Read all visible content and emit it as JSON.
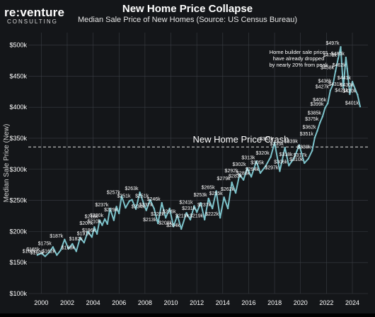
{
  "brand": {
    "name": "re:venture",
    "tagline": "CONSULTING"
  },
  "chart_data": {
    "type": "line",
    "title": "New Home Price Collapse",
    "subtitle": "Median Sale Price of New Homes (Source: US Census Bureau)",
    "xlabel": "",
    "ylabel": "Median Sale Price (New)",
    "xlim": [
      1999.0,
      2025.2
    ],
    "ylim": [
      100,
      520
    ],
    "x_ticks": [
      2000,
      2002,
      2004,
      2006,
      2008,
      2010,
      2012,
      2014,
      2016,
      2018,
      2020,
      2022,
      2024
    ],
    "y_ticks": [
      {
        "value": 100,
        "label": "$100k"
      },
      {
        "value": 150,
        "label": "$150k"
      },
      {
        "value": 200,
        "label": "$200k"
      },
      {
        "value": 250,
        "label": "$250k"
      },
      {
        "value": 300,
        "label": "$300k"
      },
      {
        "value": 350,
        "label": "$350k"
      },
      {
        "value": 400,
        "label": "$400k"
      },
      {
        "value": 450,
        "label": "$450k"
      },
      {
        "value": 500,
        "label": "$500k"
      }
    ],
    "grid": true,
    "colors": {
      "line": "#7dc4cc",
      "background": "#141619",
      "grid": "#3a3e44",
      "text": "#ffffff"
    },
    "series": [
      {
        "name": "Median Sale Price",
        "points": [
          [
            1999.7,
            162
          ],
          [
            2000.0,
            165
          ],
          [
            2000.3,
            160
          ],
          [
            2000.6,
            166
          ],
          [
            2000.9,
            175
          ],
          [
            2001.2,
            162
          ],
          [
            2001.5,
            170
          ],
          [
            2001.8,
            187
          ],
          [
            2002.1,
            172
          ],
          [
            2002.4,
            180
          ],
          [
            2002.7,
            168
          ],
          [
            2003.0,
            190
          ],
          [
            2003.3,
            182
          ],
          [
            2003.6,
            200
          ],
          [
            2003.9,
            191
          ],
          [
            2004.1,
            207
          ],
          [
            2004.3,
            196
          ],
          [
            2004.5,
            218
          ],
          [
            2004.7,
            210
          ],
          [
            2004.9,
            220
          ],
          [
            2005.1,
            212
          ],
          [
            2005.3,
            237
          ],
          [
            2005.6,
            218
          ],
          [
            2005.8,
            240
          ],
          [
            2006.0,
            229
          ],
          [
            2006.2,
            257
          ],
          [
            2006.5,
            238
          ],
          [
            2006.8,
            249
          ],
          [
            2007.0,
            251
          ],
          [
            2007.3,
            236
          ],
          [
            2007.6,
            263
          ],
          [
            2007.9,
            245
          ],
          [
            2008.1,
            234
          ],
          [
            2008.4,
            251
          ],
          [
            2008.7,
            237
          ],
          [
            2009.0,
            213
          ],
          [
            2009.3,
            246
          ],
          [
            2009.6,
            222
          ],
          [
            2009.9,
            237
          ],
          [
            2010.2,
            208
          ],
          [
            2010.5,
            226
          ],
          [
            2010.8,
            204
          ],
          [
            2011.2,
            230
          ],
          [
            2011.5,
            219
          ],
          [
            2011.8,
            241
          ],
          [
            2012.0,
            231
          ],
          [
            2012.3,
            246
          ],
          [
            2012.6,
            219
          ],
          [
            2012.9,
            253
          ],
          [
            2013.2,
            237
          ],
          [
            2013.5,
            265
          ],
          [
            2013.8,
            222
          ],
          [
            2014.1,
            255
          ],
          [
            2014.4,
            237
          ],
          [
            2014.7,
            279
          ],
          [
            2015.0,
            262
          ],
          [
            2015.3,
            292
          ],
          [
            2015.6,
            283
          ],
          [
            2015.9,
            302
          ],
          [
            2016.2,
            288
          ],
          [
            2016.6,
            313
          ],
          [
            2016.9,
            294
          ],
          [
            2017.3,
            305
          ],
          [
            2017.7,
            320
          ],
          [
            2018.0,
            343
          ],
          [
            2018.4,
            297
          ],
          [
            2018.8,
            335
          ],
          [
            2019.1,
            306
          ],
          [
            2019.5,
            318
          ],
          [
            2019.9,
            339
          ],
          [
            2020.3,
            310
          ],
          [
            2020.6,
            317
          ],
          [
            2020.9,
            330
          ],
          [
            2021.1,
            351
          ],
          [
            2021.3,
            362
          ],
          [
            2021.5,
            375
          ],
          [
            2021.7,
            385
          ],
          [
            2021.9,
            399
          ],
          [
            2022.1,
            406
          ],
          [
            2022.3,
            427
          ],
          [
            2022.5,
            436
          ],
          [
            2022.7,
            458
          ],
          [
            2022.9,
            478
          ],
          [
            2023.1,
            497
          ],
          [
            2023.3,
            431
          ],
          [
            2023.5,
            480
          ],
          [
            2023.6,
            462
          ],
          [
            2023.8,
            421
          ],
          [
            2024.0,
            441
          ],
          [
            2024.2,
            430
          ],
          [
            2024.4,
            420
          ],
          [
            2024.6,
            401
          ]
        ]
      }
    ],
    "data_labels": [
      {
        "x": 1999.7,
        "y": 162,
        "label": "$162k"
      },
      {
        "x": 2000.0,
        "y": 165,
        "label": "$165k"
      },
      {
        "x": 2000.3,
        "y": 160,
        "label": "$160k"
      },
      {
        "x": 2000.9,
        "y": 175,
        "label": "$175k"
      },
      {
        "x": 2001.2,
        "y": 162,
        "label": "$162k"
      },
      {
        "x": 2001.8,
        "y": 187,
        "label": "$187k"
      },
      {
        "x": 2002.7,
        "y": 168,
        "label": "$168k"
      },
      {
        "x": 2003.3,
        "y": 182,
        "label": "$182k"
      },
      {
        "x": 2003.9,
        "y": 191,
        "label": "$191k"
      },
      {
        "x": 2004.1,
        "y": 207,
        "label": "$207k"
      },
      {
        "x": 2004.3,
        "y": 196,
        "label": "$196k"
      },
      {
        "x": 2004.5,
        "y": 218,
        "label": "$218k"
      },
      {
        "x": 2004.7,
        "y": 210,
        "label": "$210k"
      },
      {
        "x": 2004.9,
        "y": 220,
        "label": "$220k"
      },
      {
        "x": 2005.3,
        "y": 237,
        "label": "$237k"
      },
      {
        "x": 2006.0,
        "y": 229,
        "label": "$229k"
      },
      {
        "x": 2006.2,
        "y": 257,
        "label": "$257k"
      },
      {
        "x": 2007.0,
        "y": 251,
        "label": "$251k"
      },
      {
        "x": 2007.6,
        "y": 263,
        "label": "$263k"
      },
      {
        "x": 2008.1,
        "y": 234,
        "label": "$234k"
      },
      {
        "x": 2008.4,
        "y": 251,
        "label": "$251k"
      },
      {
        "x": 2008.7,
        "y": 237,
        "label": "$237k"
      },
      {
        "x": 2009.0,
        "y": 213,
        "label": "$213k"
      },
      {
        "x": 2009.3,
        "y": 246,
        "label": "$246k"
      },
      {
        "x": 2009.6,
        "y": 222,
        "label": "$222k"
      },
      {
        "x": 2010.2,
        "y": 208,
        "label": "$208k"
      },
      {
        "x": 2010.5,
        "y": 226,
        "label": "$226k"
      },
      {
        "x": 2010.8,
        "y": 204,
        "label": "$204k"
      },
      {
        "x": 2011.5,
        "y": 219,
        "label": "$219k"
      },
      {
        "x": 2011.8,
        "y": 241,
        "label": "$241k"
      },
      {
        "x": 2012.0,
        "y": 231,
        "label": "$231k"
      },
      {
        "x": 2012.6,
        "y": 219,
        "label": "$219k"
      },
      {
        "x": 2012.9,
        "y": 253,
        "label": "$253k"
      },
      {
        "x": 2013.2,
        "y": 237,
        "label": "$237k"
      },
      {
        "x": 2013.5,
        "y": 265,
        "label": "$265k"
      },
      {
        "x": 2013.8,
        "y": 222,
        "label": "$222k"
      },
      {
        "x": 2014.1,
        "y": 255,
        "label": "$255k"
      },
      {
        "x": 2014.7,
        "y": 279,
        "label": "$279k"
      },
      {
        "x": 2015.0,
        "y": 262,
        "label": "$262k"
      },
      {
        "x": 2015.3,
        "y": 292,
        "label": "$292k"
      },
      {
        "x": 2015.6,
        "y": 283,
        "label": "$283k"
      },
      {
        "x": 2015.9,
        "y": 302,
        "label": "$302k"
      },
      {
        "x": 2016.2,
        "y": 288,
        "label": "$288k"
      },
      {
        "x": 2016.6,
        "y": 313,
        "label": "$313k"
      },
      {
        "x": 2016.9,
        "y": 294,
        "label": "$294k"
      },
      {
        "x": 2017.3,
        "y": 305,
        "label": "$305k"
      },
      {
        "x": 2017.7,
        "y": 320,
        "label": "$320k"
      },
      {
        "x": 2018.0,
        "y": 343,
        "label": "$343k"
      },
      {
        "x": 2018.4,
        "y": 297,
        "label": "$297k"
      },
      {
        "x": 2018.8,
        "y": 335,
        "label": "$335k"
      },
      {
        "x": 2019.1,
        "y": 306,
        "label": "$306k"
      },
      {
        "x": 2019.5,
        "y": 318,
        "label": "$318k"
      },
      {
        "x": 2019.9,
        "y": 339,
        "label": "$339k"
      },
      {
        "x": 2020.3,
        "y": 310,
        "label": "$310k"
      },
      {
        "x": 2020.6,
        "y": 317,
        "label": "$317k"
      },
      {
        "x": 2020.9,
        "y": 330,
        "label": "$330k"
      },
      {
        "x": 2021.1,
        "y": 351,
        "label": "$351k"
      },
      {
        "x": 2021.3,
        "y": 362,
        "label": "$362k"
      },
      {
        "x": 2021.5,
        "y": 375,
        "label": "$375k"
      },
      {
        "x": 2021.7,
        "y": 385,
        "label": "$385k"
      },
      {
        "x": 2021.9,
        "y": 399,
        "label": "$399k"
      },
      {
        "x": 2022.1,
        "y": 406,
        "label": "$406k"
      },
      {
        "x": 2022.3,
        "y": 427,
        "label": "$427k"
      },
      {
        "x": 2022.5,
        "y": 436,
        "label": "$436k"
      },
      {
        "x": 2022.7,
        "y": 458,
        "label": "$458k"
      },
      {
        "x": 2022.9,
        "y": 478,
        "label": "$478k"
      },
      {
        "x": 2023.1,
        "y": 497,
        "label": "$497k"
      },
      {
        "x": 2023.3,
        "y": 431,
        "label": "$431k"
      },
      {
        "x": 2023.5,
        "y": 480,
        "label": "$480k"
      },
      {
        "x": 2023.6,
        "y": 462,
        "label": "$462k"
      },
      {
        "x": 2023.8,
        "y": 421,
        "label": "$421k"
      },
      {
        "x": 2024.0,
        "y": 441,
        "label": "$441k"
      },
      {
        "x": 2024.2,
        "y": 430,
        "label": "$430k"
      },
      {
        "x": 2024.4,
        "y": 420,
        "label": "$420k"
      },
      {
        "x": 2024.6,
        "y": 401,
        "label": "$401k"
      }
    ],
    "annotations": [
      {
        "kind": "hline",
        "y": 336,
        "text": "New Home Price Crash"
      },
      {
        "kind": "note",
        "lines": [
          "Home builder sale prices",
          "have already dropped",
          "by nearly 20% from peak"
        ]
      }
    ]
  }
}
